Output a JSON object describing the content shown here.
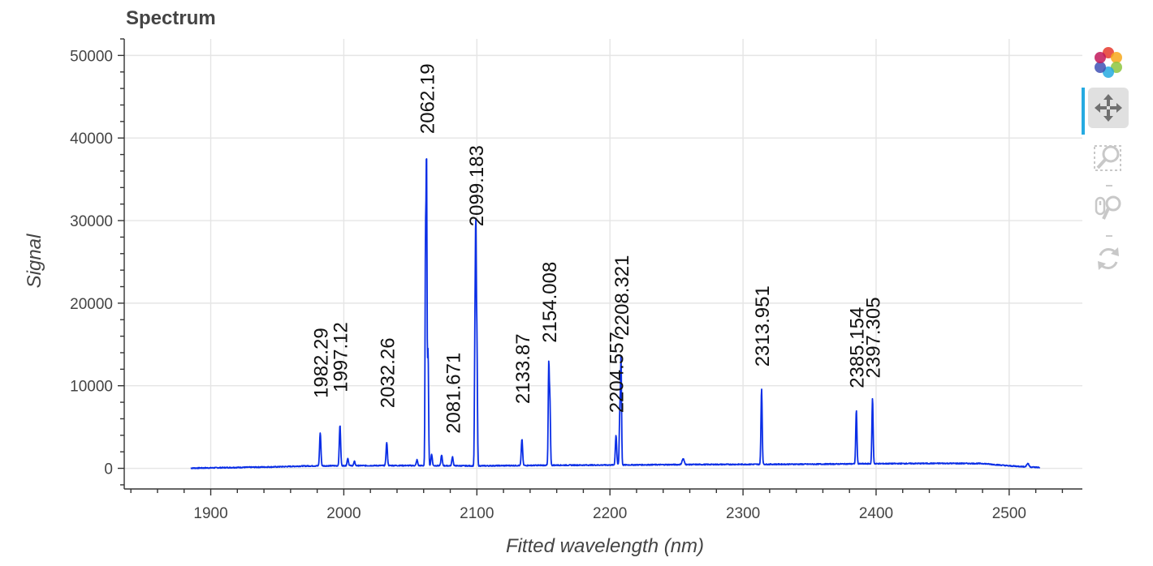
{
  "chart_data": {
    "type": "line",
    "title": "Spectrum",
    "xlabel": "Fitted wavelength (nm)",
    "ylabel": "Signal",
    "xlim": [
      1835,
      2555
    ],
    "ylim": [
      -2500,
      52000
    ],
    "x_ticks": [
      1900,
      2000,
      2100,
      2200,
      2300,
      2400,
      2500
    ],
    "y_ticks": [
      0,
      10000,
      20000,
      30000,
      40000,
      50000
    ],
    "x_tick_labels": [
      "1900",
      "2000",
      "2100",
      "2200",
      "2300",
      "2400",
      "2500"
    ],
    "y_tick_labels": [
      "0",
      "10000",
      "20000",
      "30000",
      "40000",
      "50000"
    ],
    "grid": true,
    "series": [
      {
        "color": "#0a2ee6",
        "baseline": [
          [
            1885,
            20
          ],
          [
            1950,
            180
          ],
          [
            1970,
            280
          ],
          [
            2000,
            320
          ],
          [
            2040,
            340
          ],
          [
            2100,
            300
          ],
          [
            2160,
            380
          ],
          [
            2200,
            400
          ],
          [
            2250,
            450
          ],
          [
            2300,
            480
          ],
          [
            2350,
            500
          ],
          [
            2400,
            560
          ],
          [
            2450,
            600
          ],
          [
            2480,
            580
          ],
          [
            2500,
            300
          ],
          [
            2523,
            100
          ]
        ],
        "peaks": [
          {
            "x": 1982.29,
            "y": 4000,
            "w": 0.5
          },
          {
            "x": 1997.12,
            "y": 4900,
            "w": 0.5
          },
          {
            "x": 2003.0,
            "y": 900,
            "w": 0.5
          },
          {
            "x": 2008.0,
            "y": 500,
            "w": 0.5
          },
          {
            "x": 2032.26,
            "y": 2800,
            "w": 0.5
          },
          {
            "x": 2055.0,
            "y": 700,
            "w": 0.5
          },
          {
            "x": 2061.4,
            "y": 26000,
            "w": 0.35
          },
          {
            "x": 2062.19,
            "y": 35900,
            "w": 0.35
          },
          {
            "x": 2063.3,
            "y": 14000,
            "w": 0.4
          },
          {
            "x": 2066.0,
            "y": 1400,
            "w": 0.5
          },
          {
            "x": 2073.5,
            "y": 1300,
            "w": 0.5
          },
          {
            "x": 2081.671,
            "y": 1100,
            "w": 0.5
          },
          {
            "x": 2098.5,
            "y": 14000,
            "w": 0.35
          },
          {
            "x": 2099.183,
            "y": 26300,
            "w": 0.35
          },
          {
            "x": 2100.0,
            "y": 15500,
            "w": 0.4
          },
          {
            "x": 2133.87,
            "y": 3200,
            "w": 0.5
          },
          {
            "x": 2154.008,
            "y": 12000,
            "w": 0.4
          },
          {
            "x": 2154.9,
            "y": 7500,
            "w": 0.4
          },
          {
            "x": 2204.557,
            "y": 3600,
            "w": 0.5
          },
          {
            "x": 2208.321,
            "y": 12800,
            "w": 0.4
          },
          {
            "x": 2207.4,
            "y": 6000,
            "w": 0.4
          },
          {
            "x": 2255.0,
            "y": 700,
            "w": 0.8
          },
          {
            "x": 2313.951,
            "y": 9200,
            "w": 0.45
          },
          {
            "x": 2385.154,
            "y": 6500,
            "w": 0.45
          },
          {
            "x": 2397.305,
            "y": 7900,
            "w": 0.45
          },
          {
            "x": 2514.0,
            "y": 400,
            "w": 0.8
          }
        ]
      }
    ],
    "annotations": [
      {
        "text": "1982.29",
        "x": 1982.29,
        "y": 8500
      },
      {
        "text": "1997.12",
        "x": 1997.12,
        "y": 9200
      },
      {
        "text": "2032.26",
        "x": 2032.26,
        "y": 7300
      },
      {
        "text": "2062.19",
        "x": 2062.19,
        "y": 40500
      },
      {
        "text": "2081.671",
        "x": 2081.671,
        "y": 4200
      },
      {
        "text": "2099.183",
        "x": 2099.183,
        "y": 29300
      },
      {
        "text": "2133.87",
        "x": 2133.87,
        "y": 7800
      },
      {
        "text": "2154.008",
        "x": 2154.008,
        "y": 15200
      },
      {
        "text": "2204.557",
        "x": 2204.557,
        "y": 6700
      },
      {
        "text": "2208.321",
        "x": 2208.321,
        "y": 16000
      },
      {
        "text": "2313.951",
        "x": 2313.951,
        "y": 12300
      },
      {
        "text": "2385.154",
        "x": 2385.154,
        "y": 9700
      },
      {
        "text": "2397.305",
        "x": 2397.305,
        "y": 10900
      }
    ]
  },
  "toolbar": {
    "tools": [
      {
        "name": "bokeh-logo-icon",
        "active": false
      },
      {
        "name": "pan-tool-icon",
        "active": true
      },
      {
        "name": "box-zoom-tool-icon",
        "active": false
      },
      {
        "name": "wheel-zoom-tool-icon",
        "active": false
      },
      {
        "name": "reset-tool-icon",
        "active": false
      }
    ]
  }
}
